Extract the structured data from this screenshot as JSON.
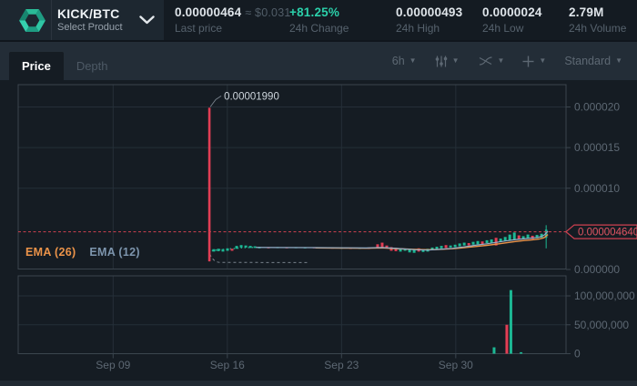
{
  "header": {
    "pair": "KICK/BTC",
    "select_label": "Select Product",
    "stats": [
      {
        "value": "0.00000464",
        "approx": "≈ $0.031",
        "label": "Last price"
      },
      {
        "value": "+81.25%",
        "label": "24h Change"
      },
      {
        "value": "0.00000493",
        "label": "24h High"
      },
      {
        "value": "0.0000024",
        "label": "24h Low"
      },
      {
        "value": "2.79M",
        "label": "24h Volume"
      }
    ]
  },
  "tabs": {
    "price": "Price",
    "depth": "Depth"
  },
  "toolbar": {
    "timeframe": "6h",
    "preset": "Standard"
  },
  "icons": {
    "caret_down": "▼"
  },
  "legend": {
    "ema26": "EMA (26)",
    "ema12": "EMA (12)"
  },
  "colors": {
    "accent_teal": "#2bd0aa",
    "candle_green": "#1cb894",
    "candle_red": "#e23e54",
    "ema26_orange": "#eb9349",
    "ema12_blue": "#93aec8",
    "ema12_warm": "#2aa58c",
    "last_price_red": "#cf4050",
    "last_price_text": "#e25563",
    "grid": "#252f38",
    "border": "#3b454e",
    "axis_text": "#5d6873",
    "leader_gray": "#78828c",
    "annotation_text": "#ccd4db",
    "panel_bg": "#151c23"
  },
  "chart_data": {
    "type": "candlestick+volume",
    "timeframe": "6h",
    "price_scale_note": "price values in units of 1e-6 BTC; day = day-of-September (32 = Oct 2)",
    "x_ticks": [
      {
        "day": 9,
        "label": "Sep 09"
      },
      {
        "day": 16,
        "label": "Sep 16"
      },
      {
        "day": 23,
        "label": "Sep 23"
      },
      {
        "day": 30,
        "label": "Sep 30"
      }
    ],
    "price_ticks": [
      {
        "value": 20,
        "label": "0.000020"
      },
      {
        "value": 15,
        "label": "0.000015"
      },
      {
        "value": 10,
        "label": "0.000010"
      },
      {
        "value": 0,
        "label": "0.000000"
      }
    ],
    "volume_ticks": [
      {
        "value": 100000000,
        "label": "100,000,000"
      },
      {
        "value": 50000000,
        "label": "50,000,000"
      },
      {
        "value": 0,
        "label": "0"
      }
    ],
    "last_price": {
      "value": "0.00000464",
      "tag_label": "0.000004640",
      "price_units": 4.64
    },
    "high_annotation": {
      "label": "0.00001990",
      "day": 14.9,
      "price_units": 19.9
    },
    "low_leader": {
      "from": [
        14.93,
        1.9
      ],
      "bend": [
        15.55,
        0.87
      ],
      "to": [
        21.0,
        0.85
      ]
    },
    "candles": [
      [
        14.9,
        19.9,
        1.0,
        "r",
        19.9,
        1.0
      ],
      [
        15.17,
        2.5,
        2.2,
        "g"
      ],
      [
        15.45,
        2.55,
        2.25,
        "g"
      ],
      [
        15.73,
        2.5,
        2.2,
        "g"
      ],
      [
        16.01,
        2.6,
        2.3,
        "g"
      ],
      [
        16.29,
        2.55,
        2.3,
        "r"
      ],
      [
        16.57,
        2.9,
        2.55,
        "g"
      ],
      [
        16.85,
        3.0,
        2.7,
        "g"
      ],
      [
        17.13,
        2.95,
        2.7,
        "g"
      ],
      [
        17.41,
        2.9,
        2.65,
        "g"
      ],
      [
        17.69,
        2.85,
        2.65,
        "g"
      ],
      [
        17.96,
        2.78,
        2.6,
        "g"
      ],
      [
        18.52,
        2.75,
        2.6,
        "r"
      ],
      [
        19.08,
        2.76,
        2.62,
        "g"
      ],
      [
        19.64,
        2.74,
        2.6,
        "r"
      ],
      [
        20.2,
        2.75,
        2.62,
        "g"
      ],
      [
        20.76,
        2.73,
        2.6,
        "g"
      ],
      [
        21.32,
        2.74,
        2.6,
        "r"
      ],
      [
        21.88,
        2.72,
        2.58,
        "g"
      ],
      [
        22.44,
        2.7,
        2.58,
        "r"
      ],
      [
        23.0,
        2.7,
        2.56,
        "g"
      ],
      [
        23.56,
        2.68,
        2.55,
        "r"
      ],
      [
        24.12,
        2.68,
        2.56,
        "g"
      ],
      [
        24.68,
        2.7,
        2.55,
        "r"
      ],
      [
        25.21,
        3.1,
        2.7,
        "r"
      ],
      [
        25.49,
        3.3,
        2.75,
        "r"
      ],
      [
        25.77,
        2.95,
        2.6,
        "r"
      ],
      [
        26.05,
        2.75,
        2.3,
        "r"
      ],
      [
        26.33,
        2.65,
        2.25,
        "r"
      ],
      [
        26.61,
        2.6,
        2.2,
        "g"
      ],
      [
        26.89,
        2.55,
        2.3,
        "g"
      ],
      [
        27.17,
        2.5,
        2.1,
        "g"
      ],
      [
        27.45,
        2.45,
        2.05,
        "g"
      ],
      [
        27.73,
        2.6,
        2.2,
        "r"
      ],
      [
        28.0,
        2.5,
        2.15,
        "g"
      ],
      [
        28.28,
        2.55,
        2.2,
        "g"
      ],
      [
        28.56,
        2.7,
        2.4,
        "g"
      ],
      [
        28.84,
        2.8,
        2.5,
        "g"
      ],
      [
        29.12,
        2.9,
        2.6,
        "g"
      ],
      [
        29.4,
        3.0,
        2.65,
        "r"
      ],
      [
        29.68,
        2.95,
        2.7,
        "g"
      ],
      [
        29.96,
        3.05,
        2.75,
        "g"
      ],
      [
        30.24,
        3.2,
        2.85,
        "g"
      ],
      [
        30.52,
        3.3,
        2.95,
        "g"
      ],
      [
        30.8,
        3.25,
        2.95,
        "r"
      ],
      [
        31.07,
        3.4,
        3.05,
        "g"
      ],
      [
        31.35,
        3.5,
        3.1,
        "g"
      ],
      [
        31.63,
        3.45,
        3.1,
        "r"
      ],
      [
        31.91,
        3.6,
        3.25,
        "g"
      ],
      [
        32.19,
        3.7,
        3.3,
        "g"
      ],
      [
        32.47,
        3.9,
        2.95,
        "r"
      ],
      [
        32.75,
        3.8,
        3.4,
        "g"
      ],
      [
        33.03,
        4.0,
        3.5,
        "g"
      ],
      [
        33.31,
        4.3,
        3.6,
        "g"
      ],
      [
        33.59,
        4.55,
        3.7,
        "g"
      ],
      [
        33.87,
        4.2,
        3.75,
        "r"
      ],
      [
        34.14,
        4.1,
        3.7,
        "g"
      ],
      [
        34.42,
        4.3,
        3.8,
        "g"
      ],
      [
        34.7,
        4.15,
        3.75,
        "r"
      ],
      [
        34.98,
        4.25,
        3.85,
        "g"
      ],
      [
        35.26,
        4.4,
        3.9,
        "g"
      ],
      [
        35.54,
        5.45,
        2.6,
        "g",
        4.9,
        3.9
      ]
    ],
    "ema12_warmup": [
      [
        15.05,
        2.3
      ],
      [
        15.35,
        2.4
      ],
      [
        15.65,
        2.45
      ],
      [
        15.95,
        2.5
      ],
      [
        16.25,
        2.55
      ],
      [
        16.55,
        2.6
      ],
      [
        16.85,
        2.65
      ],
      [
        17.15,
        2.69
      ],
      [
        17.45,
        2.71
      ],
      [
        17.75,
        2.72
      ]
    ],
    "ema12": [
      [
        17.75,
        2.72
      ],
      [
        19,
        2.7
      ],
      [
        21.4,
        2.69
      ],
      [
        23,
        2.67
      ],
      [
        24.5,
        2.65
      ],
      [
        25.5,
        2.7
      ],
      [
        26.5,
        2.58
      ],
      [
        27.5,
        2.43
      ],
      [
        28.3,
        2.39
      ],
      [
        29,
        2.48
      ],
      [
        29.8,
        2.6
      ],
      [
        30.5,
        2.78
      ],
      [
        31.2,
        2.98
      ],
      [
        31.9,
        3.16
      ],
      [
        32.5,
        3.34
      ],
      [
        33.1,
        3.52
      ],
      [
        33.7,
        3.68
      ],
      [
        34.2,
        3.78
      ],
      [
        34.7,
        3.87
      ],
      [
        35.1,
        3.97
      ],
      [
        35.4,
        4.2
      ],
      [
        35.65,
        4.7
      ]
    ],
    "ema26": [
      [
        21.4,
        2.66
      ],
      [
        23,
        2.63
      ],
      [
        24.5,
        2.61
      ],
      [
        25.5,
        2.65
      ],
      [
        26.5,
        2.55
      ],
      [
        27.5,
        2.47
      ],
      [
        28.3,
        2.43
      ],
      [
        29,
        2.47
      ],
      [
        29.8,
        2.56
      ],
      [
        30.5,
        2.68
      ],
      [
        31.2,
        2.82
      ],
      [
        31.9,
        2.97
      ],
      [
        32.5,
        3.12
      ],
      [
        33.1,
        3.28
      ],
      [
        33.6,
        3.42
      ],
      [
        34.2,
        3.56
      ],
      [
        34.7,
        3.65
      ],
      [
        35.1,
        3.74
      ],
      [
        35.4,
        3.9
      ],
      [
        35.65,
        4.3
      ]
    ],
    "volume_bars": [
      [
        32.35,
        11000000,
        "g"
      ],
      [
        33.13,
        50000000,
        "r"
      ],
      [
        33.38,
        110000000,
        "g"
      ],
      [
        34.0,
        2500000,
        "g"
      ]
    ]
  }
}
